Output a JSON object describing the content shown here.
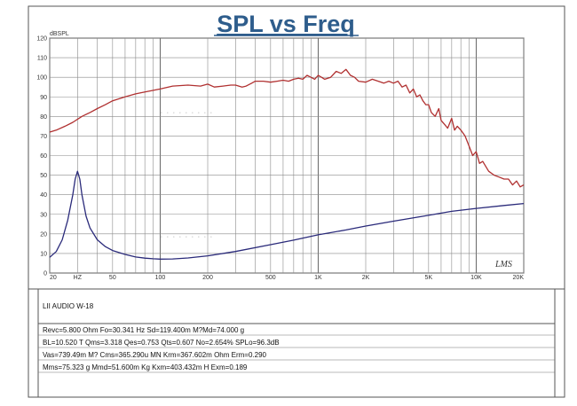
{
  "chart_data": {
    "type": "line",
    "title": "SPL vs Freq",
    "ylabel": "dBSPL",
    "xscale": "log",
    "xlim": [
      20,
      20000
    ],
    "ylim": [
      0,
      120
    ],
    "grid": true,
    "x_ticks": [
      {
        "value": 20,
        "label": "20"
      },
      {
        "value": 30,
        "label": "HZ"
      },
      {
        "value": 50,
        "label": "50"
      },
      {
        "value": 100,
        "label": "100"
      },
      {
        "value": 200,
        "label": "200"
      },
      {
        "value": 500,
        "label": "500"
      },
      {
        "value": 1000,
        "label": "1K"
      },
      {
        "value": 2000,
        "label": "2K"
      },
      {
        "value": 5000,
        "label": "5K"
      },
      {
        "value": 10000,
        "label": "10K"
      },
      {
        "value": 20000,
        "label": "20K"
      }
    ],
    "y_ticks": [
      0,
      10,
      20,
      30,
      40,
      50,
      60,
      70,
      80,
      90,
      100,
      110,
      120
    ],
    "series": [
      {
        "color": "#b03030",
        "x": [
          20,
          22,
          25,
          28,
          32,
          36,
          40,
          45,
          50,
          60,
          70,
          80,
          100,
          120,
          150,
          180,
          200,
          220,
          250,
          280,
          300,
          330,
          350,
          380,
          400,
          450,
          500,
          550,
          600,
          650,
          700,
          750,
          800,
          850,
          900,
          950,
          1000,
          1050,
          1100,
          1200,
          1300,
          1400,
          1500,
          1600,
          1700,
          1800,
          2000,
          2200,
          2400,
          2600,
          2800,
          3000,
          3200,
          3400,
          3600,
          3800,
          4000,
          4200,
          4400,
          4600,
          4800,
          5000,
          5200,
          5500,
          5800,
          6000,
          6300,
          6600,
          7000,
          7300,
          7600,
          8000,
          8500,
          9000,
          9500,
          10000,
          10500,
          11000,
          12000,
          13000,
          14000,
          15000,
          16000,
          17000,
          18000,
          19000,
          20000
        ],
        "y": [
          72,
          73,
          75,
          77,
          80,
          82,
          84,
          86,
          88,
          90,
          91.5,
          92.5,
          94,
          95.5,
          96,
          95.5,
          96.5,
          95,
          95.5,
          96,
          96,
          95,
          95.5,
          97,
          98,
          98,
          97.5,
          98,
          98.5,
          98,
          99,
          99.5,
          99,
          101,
          100,
          99,
          101,
          100,
          99,
          100,
          103,
          102,
          104,
          101,
          100,
          98,
          97.5,
          99,
          98,
          97,
          98,
          97,
          98,
          95,
          96,
          92,
          94,
          90,
          91,
          88,
          86,
          86,
          82,
          80,
          84,
          78,
          76,
          74,
          79,
          73,
          75,
          73,
          70,
          65,
          60,
          62,
          56,
          57,
          52,
          50,
          49,
          48,
          48,
          45,
          47,
          44,
          45
        ]
      },
      {
        "color": "#2a2a7a",
        "x": [
          20,
          22,
          24,
          26,
          28,
          29,
          30,
          31,
          32,
          34,
          36,
          40,
          45,
          50,
          60,
          70,
          80,
          90,
          100,
          120,
          150,
          200,
          300,
          500,
          700,
          1000,
          1500,
          2000,
          3000,
          5000,
          7000,
          10000,
          15000,
          20000
        ],
        "y": [
          8,
          11,
          17,
          27,
          40,
          48,
          52,
          48,
          40,
          29,
          23,
          17,
          13.5,
          11.5,
          9.5,
          8.2,
          7.6,
          7.3,
          7.1,
          7.2,
          7.7,
          8.8,
          11,
          14.5,
          16.8,
          19.5,
          22,
          24,
          26.5,
          29.5,
          31.5,
          33,
          34.5,
          35.5
        ]
      }
    ]
  },
  "info": {
    "model": "LII AUDIO W-18",
    "rows": [
      "Revc=5.800 Ohm  Fo=30.341 Hz  Sd=119.400m M?Md=74.000 g",
      "BL=10.520 T Qms=3.318  Qes=0.753  Qts=0.607  No=2.654% SPLo=96.3dB",
      "Vas=739.49m M? Cms=365.290u MN Krm=367.602m Ohm Erm=0.290",
      "Mms=75.323 g  Mmd=51.600m Kg  Kxm=403.432m H  Exm=0.189"
    ]
  },
  "logo": "LMS"
}
